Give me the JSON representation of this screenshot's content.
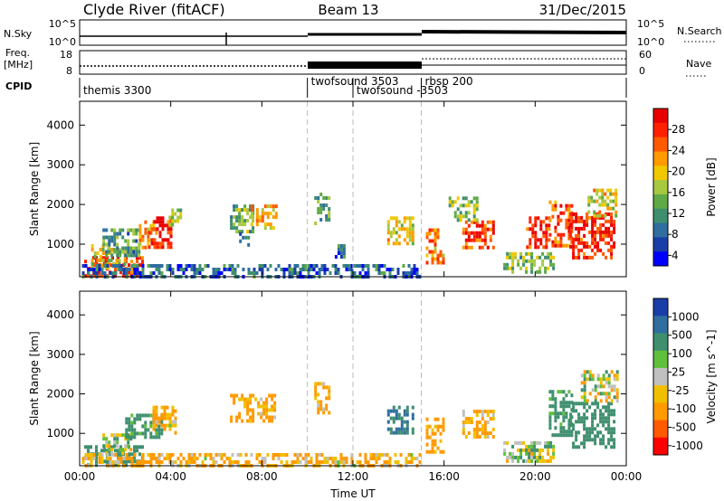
{
  "header": {
    "station": "Clyde River (fitACF)",
    "beam": "Beam 13",
    "date": "31/Dec/2015"
  },
  "summary": {
    "nsky_label": "N.Sky",
    "nsky_ticks": [
      "10^5",
      "10^0"
    ],
    "nsearch_label": "N.Search",
    "nsearch_ticks": [
      "10^5",
      "10^0"
    ],
    "freq_label_1": "Freq.",
    "freq_label_2": "[MHz]",
    "freq_ticks": [
      "18",
      "8"
    ],
    "nave_label": "Nave",
    "nave_ticks": [
      "60",
      "0"
    ],
    "cpid_label": "CPID"
  },
  "cpid_segments": [
    {
      "label": "themis 3300",
      "start_hour": 0.0
    },
    {
      "label": "twofsound 3503",
      "start_hour": 10.0
    },
    {
      "label": "twofsound -3503",
      "start_hour": 12.0
    },
    {
      "label": "rbsp 200",
      "start_hour": 15.0
    }
  ],
  "time_axis": {
    "label": "Time UT",
    "range_hours": [
      0,
      24
    ],
    "ticks": [
      "00:00",
      "04:00",
      "08:00",
      "12:00",
      "16:00",
      "20:00",
      "00:00"
    ]
  },
  "chart_data": [
    {
      "type": "heatmap",
      "name": "power",
      "ylabel": "Slant Range [km]",
      "ylim": [
        180,
        4600
      ],
      "yticks": [
        "1000",
        "2000",
        "3000",
        "4000"
      ],
      "colorbar": {
        "label": "Power [dB]",
        "ticks": [
          "28",
          "24",
          "20",
          "16",
          "12",
          "8",
          "4"
        ],
        "colors": [
          "#0000ff",
          "#1a3ea8",
          "#2f6e9f",
          "#3f8f6f",
          "#5faa46",
          "#a8c840",
          "#f0c800",
          "#ff9a00",
          "#ff5a00",
          "#ff2000",
          "#e80000"
        ]
      },
      "regions": [
        {
          "t": [
            0.2,
            2.8
          ],
          "r": [
            200,
            700
          ],
          "v": 26
        },
        {
          "t": [
            0.5,
            2.0
          ],
          "r": [
            400,
            1000
          ],
          "v": 18
        },
        {
          "t": [
            1.0,
            2.6
          ],
          "r": [
            700,
            1400
          ],
          "v": 12
        },
        {
          "t": [
            2.6,
            3.4
          ],
          "r": [
            900,
            1600
          ],
          "v": 20
        },
        {
          "t": [
            3.0,
            4.0
          ],
          "r": [
            900,
            1700
          ],
          "v": 27
        },
        {
          "t": [
            3.9,
            4.4
          ],
          "r": [
            1500,
            1900
          ],
          "v": 15
        },
        {
          "t": [
            6.6,
            7.6
          ],
          "r": [
            1300,
            2000
          ],
          "v": 14
        },
        {
          "t": [
            7.5,
            8.6
          ],
          "r": [
            1400,
            2000
          ],
          "v": 20
        },
        {
          "t": [
            7.0,
            7.4
          ],
          "r": [
            1000,
            1300
          ],
          "v": 10
        },
        {
          "t": [
            0.1,
            15.0
          ],
          "r": [
            200,
            500
          ],
          "v": 8
        },
        {
          "t": [
            10.3,
            11.0
          ],
          "r": [
            1500,
            2300
          ],
          "v": 12
        },
        {
          "t": [
            11.2,
            11.6
          ],
          "r": [
            700,
            1000
          ],
          "v": 9
        },
        {
          "t": [
            13.5,
            14.6
          ],
          "r": [
            1000,
            1700
          ],
          "v": 18
        },
        {
          "t": [
            15.2,
            16.0
          ],
          "r": [
            500,
            1400
          ],
          "v": 22
        },
        {
          "t": [
            16.8,
            18.2
          ],
          "r": [
            900,
            1600
          ],
          "v": 25
        },
        {
          "t": [
            16.2,
            17.4
          ],
          "r": [
            1600,
            2200
          ],
          "v": 14
        },
        {
          "t": [
            18.6,
            20.8
          ],
          "r": [
            300,
            800
          ],
          "v": 14
        },
        {
          "t": [
            19.6,
            20.6
          ],
          "r": [
            900,
            1700
          ],
          "v": 26
        },
        {
          "t": [
            20.6,
            21.6
          ],
          "r": [
            1000,
            2100
          ],
          "v": 24
        },
        {
          "t": [
            21.5,
            23.5
          ],
          "r": [
            700,
            1800
          ],
          "v": 27
        },
        {
          "t": [
            22.3,
            23.5
          ],
          "r": [
            1700,
            2400
          ],
          "v": 18
        }
      ]
    },
    {
      "type": "heatmap",
      "name": "velocity",
      "ylabel": "Slant Range [km]",
      "ylim": [
        180,
        4600
      ],
      "yticks": [
        "1000",
        "2000",
        "3000",
        "4000"
      ],
      "colorbar": {
        "label": "Velocity [m s^-1]",
        "ticks": [
          "1000",
          "500",
          "100",
          "25",
          "-25",
          "-100",
          "-500",
          "-1000"
        ],
        "colors": [
          "#1a3ea8",
          "#2f6e9f",
          "#3f8f6f",
          "#5fc03c",
          "#c0c0c0",
          "#f0c000",
          "#ff9a00",
          "#ff5a00",
          "#ff0000"
        ]
      },
      "regions": [
        {
          "t": [
            0.2,
            2.8
          ],
          "r": [
            200,
            700
          ],
          "v": 300
        },
        {
          "t": [
            1.0,
            2.2
          ],
          "r": [
            500,
            1000
          ],
          "v": 0
        },
        {
          "t": [
            2.0,
            3.6
          ],
          "r": [
            900,
            1500
          ],
          "v": 200
        },
        {
          "t": [
            3.2,
            4.2
          ],
          "r": [
            1000,
            1700
          ],
          "v": -120
        },
        {
          "t": [
            6.6,
            8.6
          ],
          "r": [
            1300,
            2000
          ],
          "v": -150
        },
        {
          "t": [
            0.1,
            15.0
          ],
          "r": [
            200,
            500
          ],
          "v": -120
        },
        {
          "t": [
            10.3,
            11.0
          ],
          "r": [
            1500,
            2300
          ],
          "v": -120
        },
        {
          "t": [
            13.5,
            14.6
          ],
          "r": [
            1000,
            1700
          ],
          "v": 500
        },
        {
          "t": [
            15.2,
            16.0
          ],
          "r": [
            500,
            1400
          ],
          "v": -200
        },
        {
          "t": [
            16.8,
            18.2
          ],
          "r": [
            900,
            1600
          ],
          "v": -150
        },
        {
          "t": [
            18.6,
            20.8
          ],
          "r": [
            300,
            800
          ],
          "v": 30
        },
        {
          "t": [
            20.6,
            21.6
          ],
          "r": [
            1000,
            2100
          ],
          "v": 200
        },
        {
          "t": [
            21.5,
            23.5
          ],
          "r": [
            700,
            1800
          ],
          "v": 250
        },
        {
          "t": [
            22.0,
            23.6
          ],
          "r": [
            1800,
            2600
          ],
          "v": 0
        }
      ]
    }
  ]
}
